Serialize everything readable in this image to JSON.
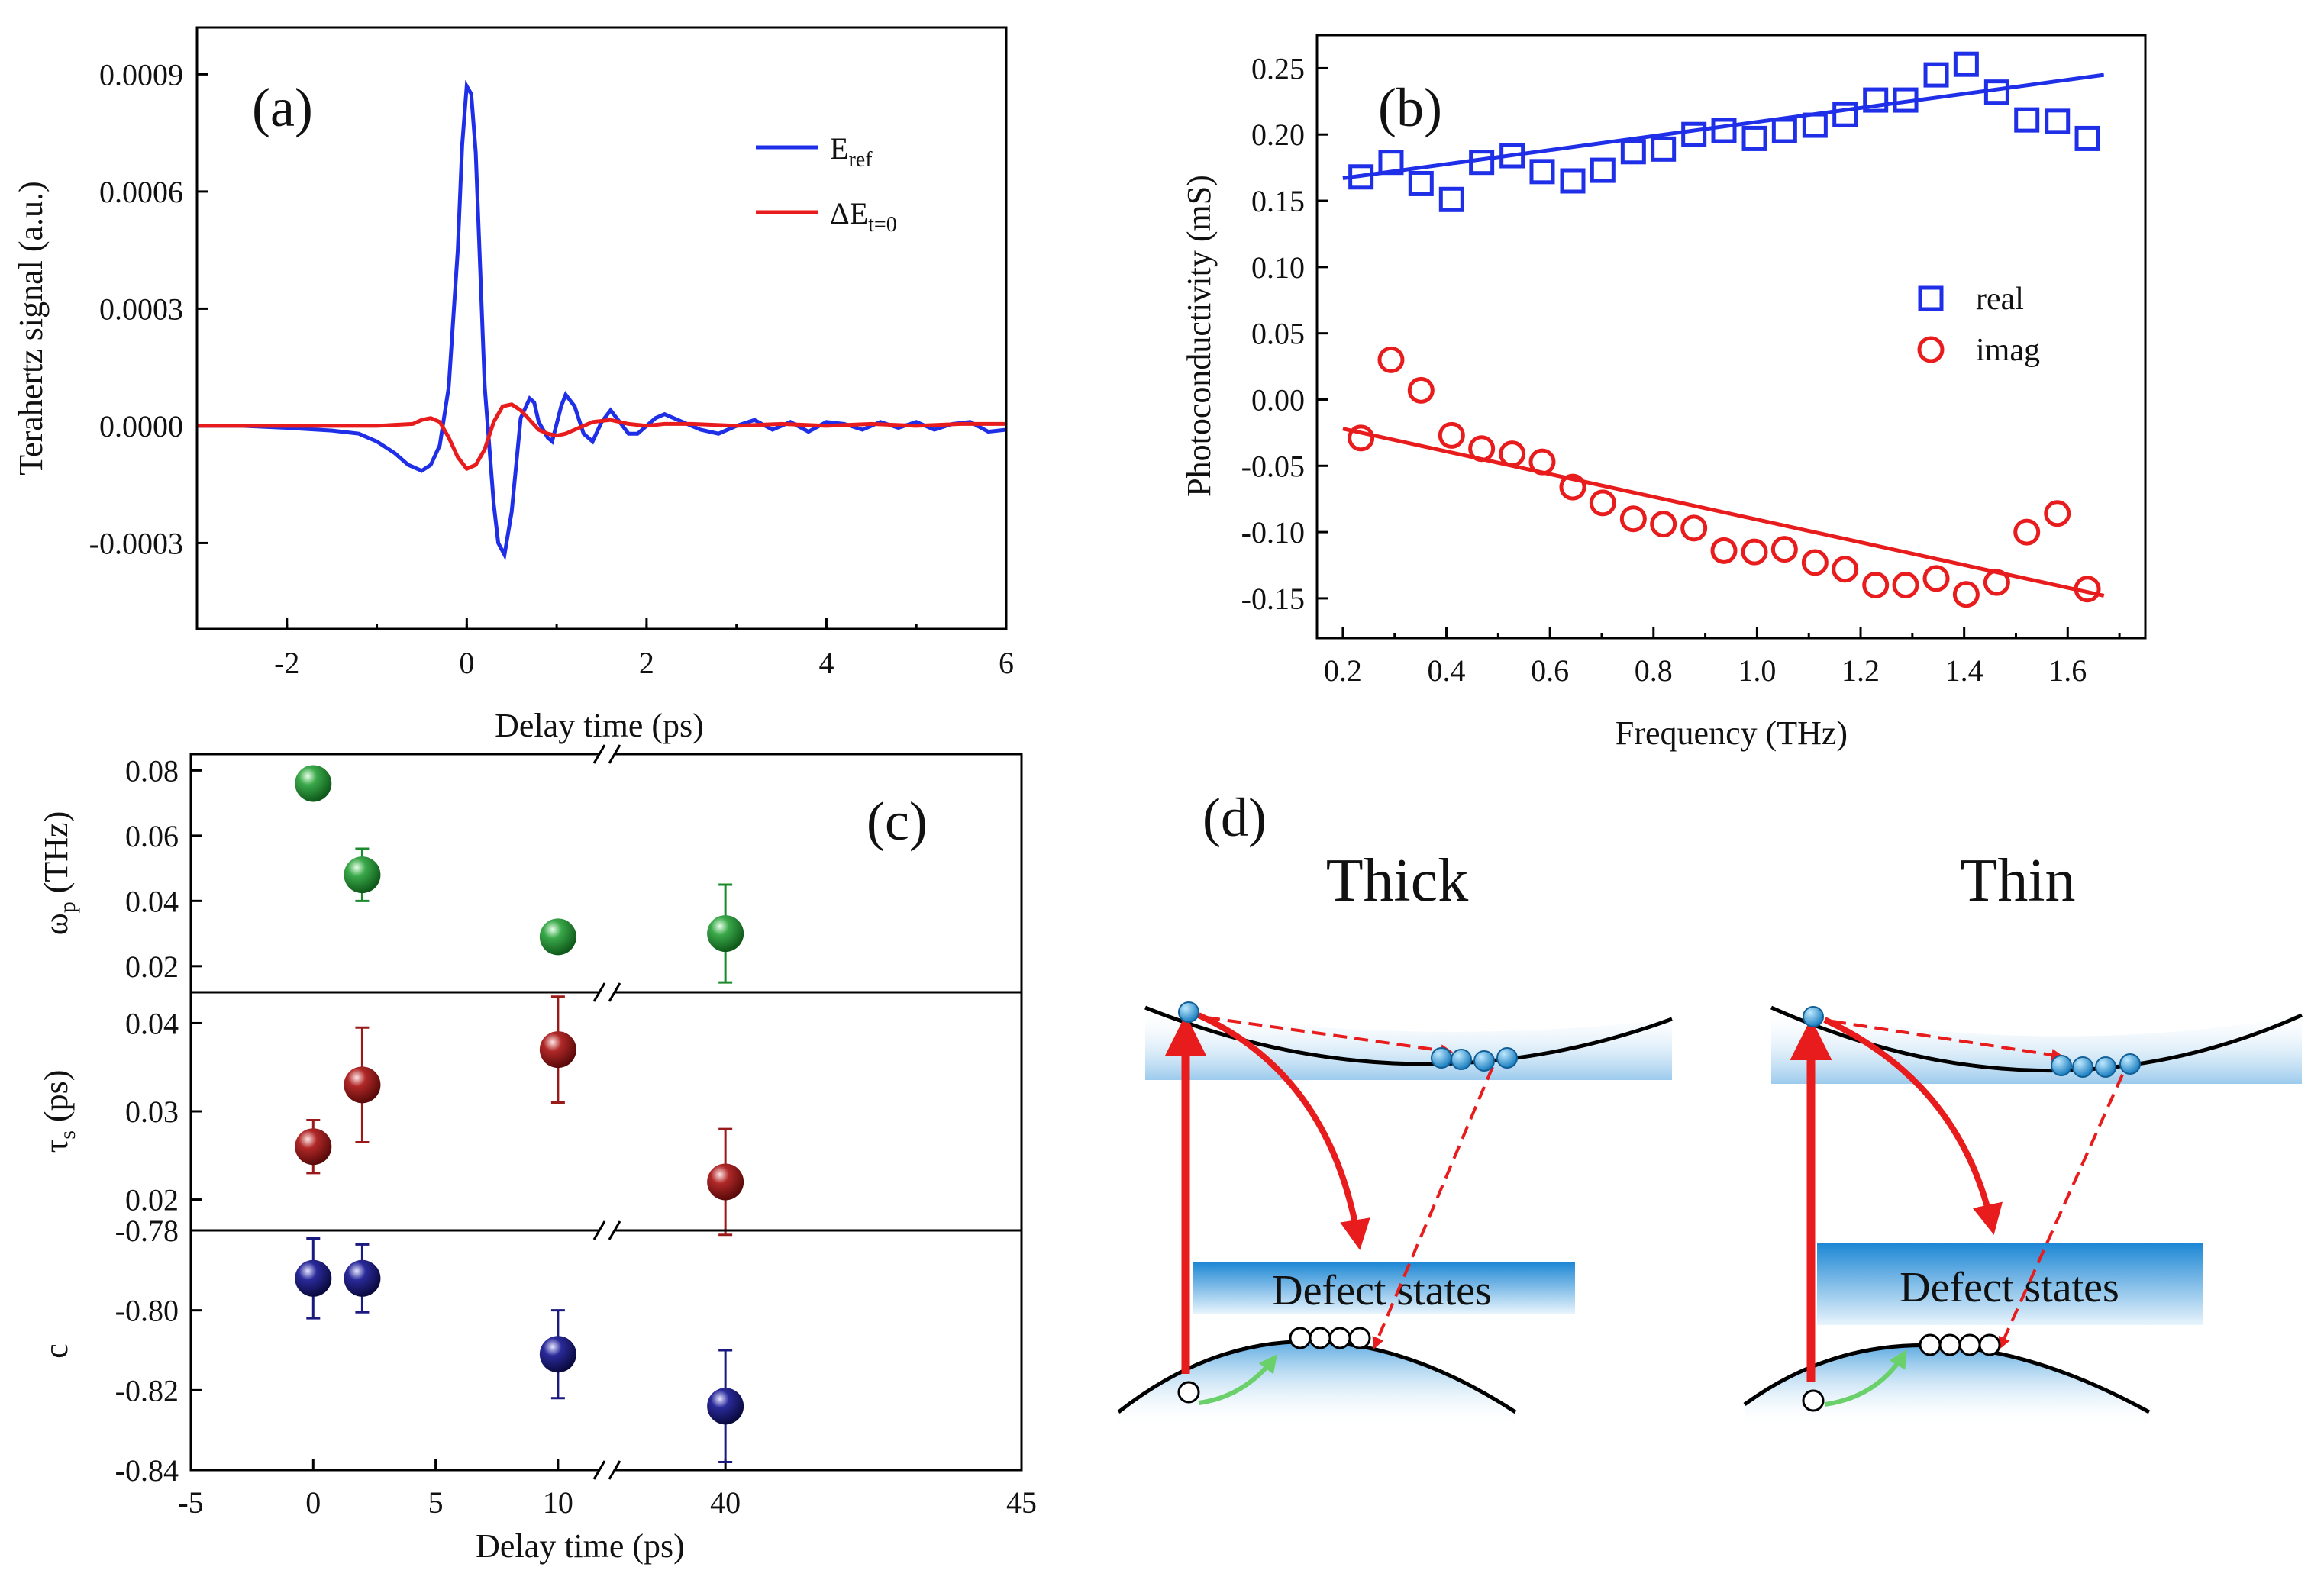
{
  "chart_data": [
    {
      "panel": "(a)",
      "type": "line",
      "xlabel": "Delay time (ps)",
      "ylabel": "Terahertz signal (a.u.)",
      "xlim": [
        -3,
        6
      ],
      "ylim": [
        -0.00052,
        0.00102
      ],
      "xticks": [
        -2,
        0,
        2,
        4,
        6
      ],
      "xtick_labels": [
        "-2",
        "0",
        "2",
        "4",
        "6"
      ],
      "yticks": [
        -0.0003,
        0,
        0.0003,
        0.0006,
        0.0009
      ],
      "ytick_labels": [
        "-0.0003",
        "0.0000",
        "0.0003",
        "0.0006",
        "0.0009"
      ],
      "legend": {
        "position": "top-right",
        "entries": [
          {
            "label": "E",
            "sub": "ref",
            "color": "#1f2fe8"
          },
          {
            "label": "ΔE",
            "sub": "t=0",
            "color": "#e81c1c"
          }
        ]
      },
      "series": [
        {
          "name": "E_ref",
          "color": "#1f2fe8",
          "x": [
            -3,
            -2.5,
            -2,
            -1.5,
            -1.2,
            -1,
            -0.8,
            -0.65,
            -0.5,
            -0.4,
            -0.3,
            -0.2,
            -0.1,
            -0.05,
            0,
            0.05,
            0.1,
            0.15,
            0.2,
            0.3,
            0.35,
            0.42,
            0.5,
            0.55,
            0.6,
            0.7,
            0.75,
            0.8,
            0.9,
            0.95,
            1.05,
            1.1,
            1.2,
            1.3,
            1.4,
            1.5,
            1.6,
            1.7,
            1.8,
            1.9,
            2,
            2.1,
            2.2,
            2.4,
            2.6,
            2.8,
            3,
            3.2,
            3.4,
            3.6,
            3.8,
            4,
            4.2,
            4.4,
            4.6,
            4.8,
            5,
            5.2,
            5.4,
            5.6,
            5.8,
            6
          ],
          "y": [
            0,
            0,
            -5e-06,
            -1.2e-05,
            -2e-05,
            -4e-05,
            -7e-05,
            -0.0001,
            -0.000115,
            -0.0001,
            -5e-05,
            0.0001,
            0.00045,
            0.00072,
            0.00087,
            0.00085,
            0.0007,
            0.0004,
            0.0001,
            -0.0002,
            -0.0003,
            -0.00033,
            -0.00022,
            -0.0001,
            2e-05,
            7e-05,
            6e-05,
            1e-05,
            -3e-05,
            -4e-05,
            5e-05,
            8e-05,
            5e-05,
            -2e-05,
            -4e-05,
            1e-05,
            4e-05,
            1e-05,
            -2e-05,
            -2e-05,
            0,
            2e-05,
            3e-05,
            1e-05,
            -1e-05,
            -2e-05,
            0,
            1.5e-05,
            -1e-05,
            1e-05,
            -1.5e-05,
            1e-05,
            5e-06,
            -1e-05,
            1e-05,
            -5e-06,
            1e-05,
            -1e-05,
            5e-06,
            1e-05,
            -1.5e-05,
            -1e-05
          ]
        },
        {
          "name": "ΔE_t=0",
          "color": "#e81c1c",
          "x": [
            -3,
            -2,
            -1,
            -0.6,
            -0.5,
            -0.4,
            -0.3,
            -0.2,
            -0.1,
            0,
            0.1,
            0.2,
            0.3,
            0.4,
            0.5,
            0.6,
            0.7,
            0.8,
            0.9,
            1,
            1.1,
            1.2,
            1.4,
            1.6,
            1.8,
            2,
            2.2,
            2.5,
            3,
            3.5,
            4,
            4.5,
            5,
            5.5,
            6
          ],
          "y": [
            0,
            0,
            0,
            5e-06,
            1.5e-05,
            2e-05,
            1e-05,
            -3e-05,
            -8e-05,
            -0.00011,
            -0.0001,
            -6e-05,
            1e-05,
            5e-05,
            5.5e-05,
            4e-05,
            1.5e-05,
            -1e-05,
            -2e-05,
            -2.5e-05,
            -2e-05,
            -1e-05,
            1e-05,
            1.5e-05,
            5e-06,
            0,
            5e-06,
            5e-06,
            0,
            5e-06,
            0,
            5e-06,
            0,
            5e-06,
            5e-06
          ]
        }
      ]
    },
    {
      "panel": "(b)",
      "type": "scatter",
      "xlabel": "Frequency (THz)",
      "ylabel": "Photoconductivity (mS)",
      "xlim": [
        0.15,
        1.75
      ],
      "ylim": [
        -0.18,
        0.275
      ],
      "xticks": [
        0.2,
        0.4,
        0.6,
        0.8,
        1.0,
        1.2,
        1.4,
        1.6
      ],
      "xtick_labels": [
        "0.2",
        "0.4",
        "0.6",
        "0.8",
        "1.0",
        "1.2",
        "1.4",
        "1.6"
      ],
      "yticks": [
        -0.15,
        -0.1,
        -0.05,
        0,
        0.05,
        0.1,
        0.15,
        0.2,
        0.25
      ],
      "ytick_labels": [
        "-0.15",
        "-0.10",
        "-0.05",
        "0.00",
        "0.05",
        "0.10",
        "0.15",
        "0.20",
        "0.25"
      ],
      "legend": {
        "position": "center-right",
        "entries": [
          {
            "label": "real",
            "marker": "square",
            "color": "#1f2fe8"
          },
          {
            "label": "imag",
            "marker": "circle",
            "color": "#e81c1c"
          }
        ]
      },
      "x": [
        0.235,
        0.293,
        0.351,
        0.41,
        0.468,
        0.527,
        0.585,
        0.644,
        0.702,
        0.761,
        0.819,
        0.878,
        0.936,
        0.995,
        1.053,
        1.112,
        1.17,
        1.229,
        1.287,
        1.346,
        1.404,
        1.463,
        1.521,
        1.58,
        1.638
      ],
      "series": [
        {
          "name": "real",
          "color": "#1f2fe8",
          "marker": "square",
          "values": [
            0.168,
            0.179,
            0.163,
            0.151,
            0.179,
            0.184,
            0.172,
            0.165,
            0.173,
            0.187,
            0.189,
            0.2,
            0.203,
            0.197,
            0.203,
            0.207,
            0.215,
            0.226,
            0.226,
            0.245,
            0.253,
            0.232,
            0.211,
            0.21,
            0.197
          ],
          "fit": {
            "x": [
              0.2,
              1.67
            ],
            "y": [
              0.167,
              0.245
            ]
          }
        },
        {
          "name": "imag",
          "color": "#e81c1c",
          "marker": "circle",
          "values": [
            -0.029,
            0.03,
            0.007,
            -0.027,
            -0.037,
            -0.041,
            -0.047,
            -0.066,
            -0.078,
            -0.09,
            -0.094,
            -0.097,
            -0.114,
            -0.115,
            -0.113,
            -0.123,
            -0.128,
            -0.14,
            -0.14,
            -0.135,
            -0.147,
            -0.138,
            -0.1,
            -0.086,
            -0.143
          ],
          "fit": {
            "x": [
              0.2,
              1.67
            ],
            "y": [
              -0.022,
              -0.148
            ]
          }
        }
      ]
    },
    {
      "panel": "(c)",
      "type": "scatter",
      "xlabel": "Delay time (ps)",
      "xlim": [
        -5,
        45
      ],
      "axis_break": [
        12,
        38
      ],
      "xticks": [
        -5,
        0,
        5,
        10,
        40,
        45
      ],
      "xtick_labels": [
        "-5",
        "0",
        "5",
        "10",
        "40",
        "45"
      ],
      "subplots": [
        {
          "ylabel": "ω",
          "ylabel_sub": "p",
          "ylabel_unit": " (THz)",
          "color": "#1a8a2a",
          "ylim": [
            0.012,
            0.085
          ],
          "yticks": [
            0.02,
            0.04,
            0.06,
            0.08
          ],
          "ytick_labels": [
            "0.02",
            "0.04",
            "0.06",
            "0.08"
          ],
          "x": [
            0,
            2,
            10,
            40
          ],
          "values": [
            0.076,
            0.048,
            0.029,
            0.03
          ],
          "errors": [
            0.004,
            0.008,
            0.002,
            0.015
          ]
        },
        {
          "ylabel": "τ",
          "ylabel_sub": "s",
          "ylabel_unit": " (ps)",
          "color": "#9a1a1a",
          "ylim": [
            0.0165,
            0.0435
          ],
          "yticks": [
            0.02,
            0.03,
            0.04
          ],
          "ytick_labels": [
            "0.02",
            "0.03",
            "0.04"
          ],
          "x": [
            0,
            2,
            10,
            40
          ],
          "values": [
            0.026,
            0.033,
            0.037,
            0.022
          ],
          "errors": [
            0.003,
            0.0065,
            0.006,
            0.006
          ]
        },
        {
          "ylabel": "c",
          "ylabel_sub": "",
          "ylabel_unit": "",
          "color": "#1a1a80",
          "ylim": [
            -0.84,
            -0.78
          ],
          "yticks": [
            -0.84,
            -0.82,
            -0.8,
            -0.78
          ],
          "ytick_labels": [
            "-0.84",
            "-0.82",
            "-0.80",
            "-0.78"
          ],
          "x": [
            0,
            2,
            10,
            40
          ],
          "values": [
            -0.792,
            -0.792,
            -0.811,
            -0.824
          ],
          "errors": [
            0.01,
            0.0085,
            0.011,
            0.014
          ]
        }
      ]
    }
  ],
  "diagram": {
    "panel": "(d)",
    "cases": [
      {
        "title": "Thick",
        "box_label": "Defect states"
      },
      {
        "title": "Thin",
        "box_label": "Defect states"
      }
    ]
  }
}
